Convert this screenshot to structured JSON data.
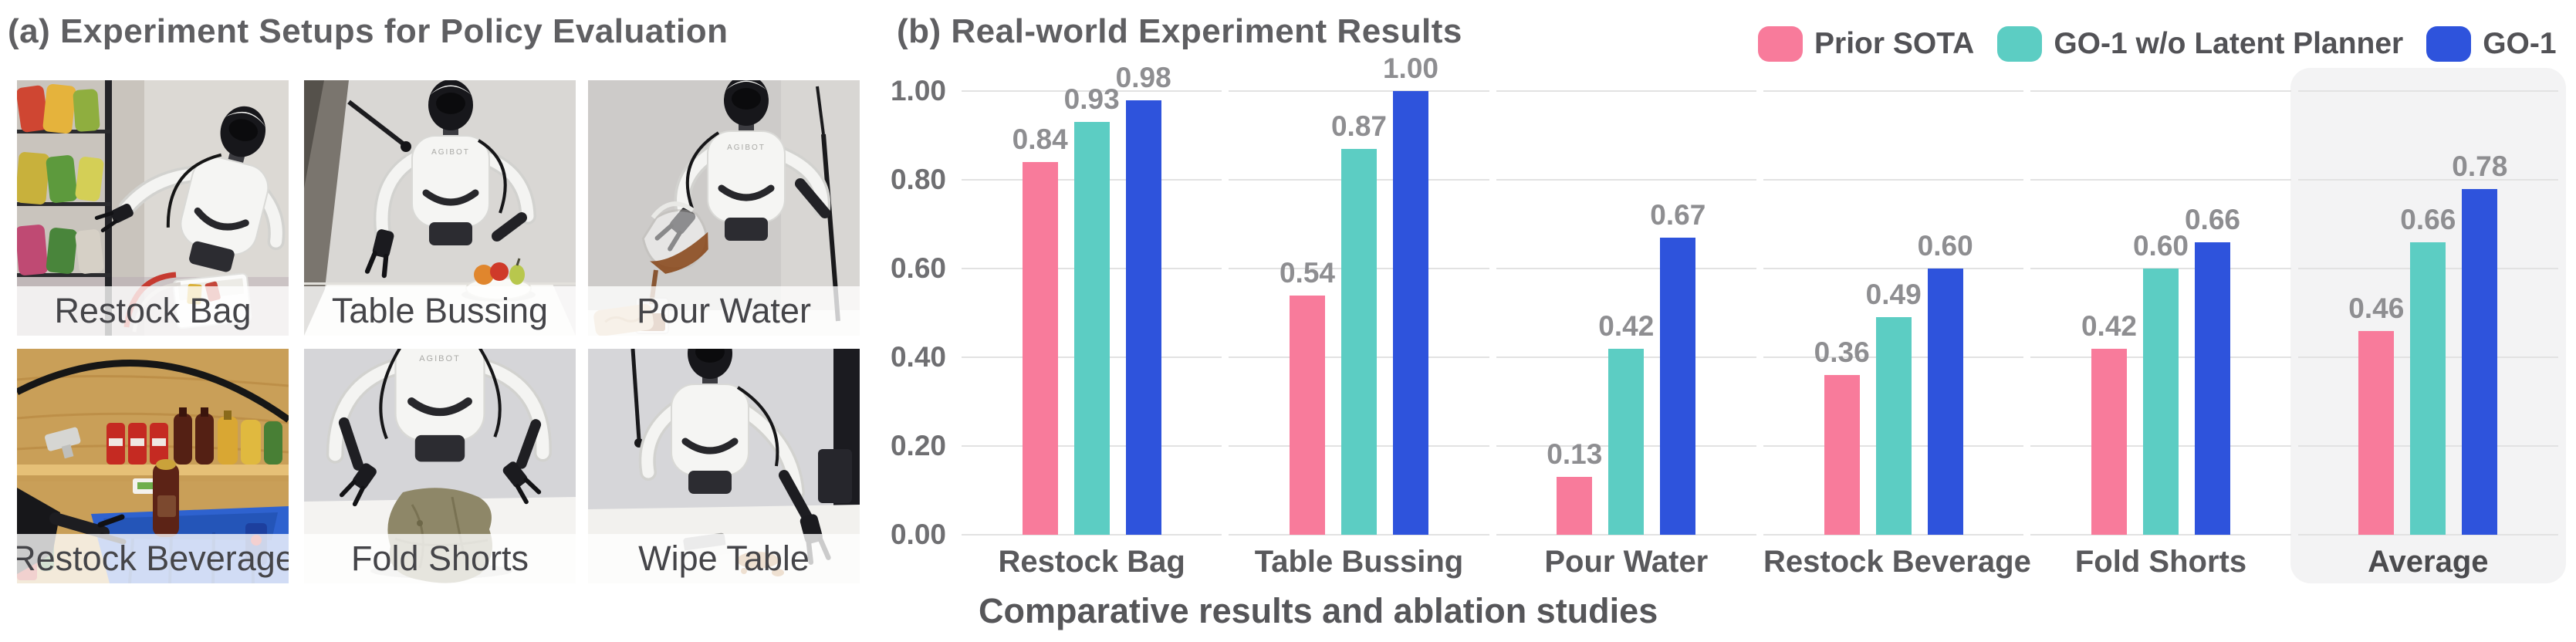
{
  "panel_a": {
    "title": "(a) Experiment Setups for Policy Evaluation",
    "robot_logo": "AGIBOT",
    "tasks": [
      "Restock Bag",
      "Table Bussing",
      "Pour Water",
      "Restock Beverage",
      "Fold Shorts",
      "Wipe Table"
    ]
  },
  "panel_b": {
    "title": "(b) Real-world Experiment Results",
    "caption": "Comparative results and ablation studies"
  },
  "chart_data": {
    "type": "bar",
    "categories": [
      "Restock Bag",
      "Table Bussing",
      "Pour Water",
      "Restock Beverage",
      "Fold Shorts",
      "Average"
    ],
    "series": [
      {
        "name": "Prior SOTA",
        "color": "#F87B9B",
        "values": [
          0.84,
          0.54,
          0.13,
          0.36,
          0.42,
          0.46
        ]
      },
      {
        "name": "GO-1 w/o Latent Planner",
        "color": "#5CCDC3",
        "values": [
          0.93,
          0.87,
          0.42,
          0.49,
          0.6,
          0.66
        ]
      },
      {
        "name": "GO-1",
        "color": "#2E53DC",
        "values": [
          0.98,
          1.0,
          0.67,
          0.6,
          0.66,
          0.78
        ]
      }
    ],
    "ylabel": "",
    "xlabel": "",
    "ylim": [
      0,
      1
    ],
    "yticks": [
      "0.00",
      "0.20",
      "0.40",
      "0.60",
      "0.80",
      "1.00"
    ],
    "grid": true,
    "legend_position": "top-right",
    "highlight_category": "Average",
    "highlight_color": "#f3f3f4",
    "value_label_format": "2-decimals"
  }
}
